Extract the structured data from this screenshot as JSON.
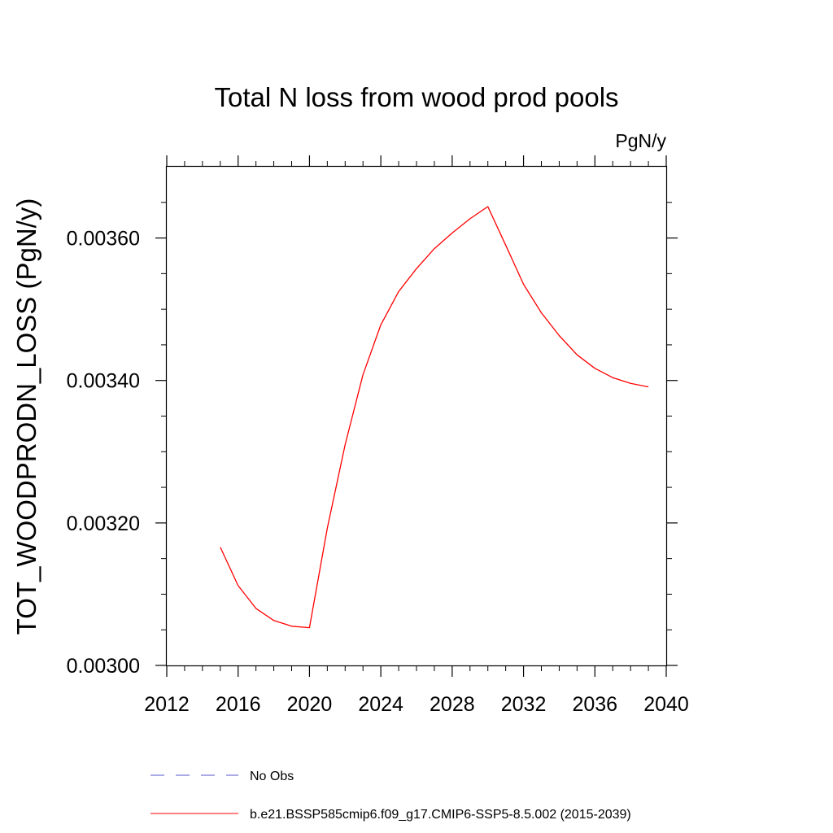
{
  "chart_data": {
    "type": "line",
    "title": "Total N loss from wood prod pools",
    "units_label": "PgN/y",
    "ylabel": "TOT_WOODPRODN_LOSS  (PgN/y)",
    "xlabel": "",
    "xlim": [
      2012,
      2040
    ],
    "ylim": [
      0.003,
      0.0037
    ],
    "x_ticks": [
      2012,
      2016,
      2020,
      2024,
      2028,
      2032,
      2036,
      2040
    ],
    "x_tick_labels": [
      "2012",
      "2016",
      "2020",
      "2024",
      "2028",
      "2032",
      "2036",
      "2040"
    ],
    "y_ticks": [
      0.003,
      0.0032,
      0.0034,
      0.0036
    ],
    "y_tick_labels": [
      "0.00300",
      "0.00320",
      "0.00340",
      "0.00360"
    ],
    "grid": false,
    "legend_position": "bottom",
    "series": [
      {
        "name": "No Obs",
        "color": "#5555cc",
        "style": "dashed",
        "x": [],
        "y": []
      },
      {
        "name": "b.e21.BSSP585cmip6.f09_g17.CMIP6-SSP5-8.5.002 (2015-2039)",
        "color": "#ff0000",
        "style": "solid",
        "x": [
          2015,
          2016,
          2017,
          2018,
          2019,
          2020,
          2021,
          2022,
          2023,
          2024,
          2025,
          2026,
          2027,
          2028,
          2029,
          2030,
          2031,
          2032,
          2033,
          2034,
          2035,
          2036,
          2037,
          2038,
          2039
        ],
        "y": [
          0.003166,
          0.003112,
          0.00308,
          0.003063,
          0.003055,
          0.003053,
          0.003193,
          0.00331,
          0.003408,
          0.003478,
          0.003525,
          0.003557,
          0.003585,
          0.003607,
          0.003627,
          0.003644,
          0.00359,
          0.003535,
          0.003495,
          0.003463,
          0.003436,
          0.003417,
          0.003404,
          0.003396,
          0.003391
        ]
      }
    ]
  }
}
